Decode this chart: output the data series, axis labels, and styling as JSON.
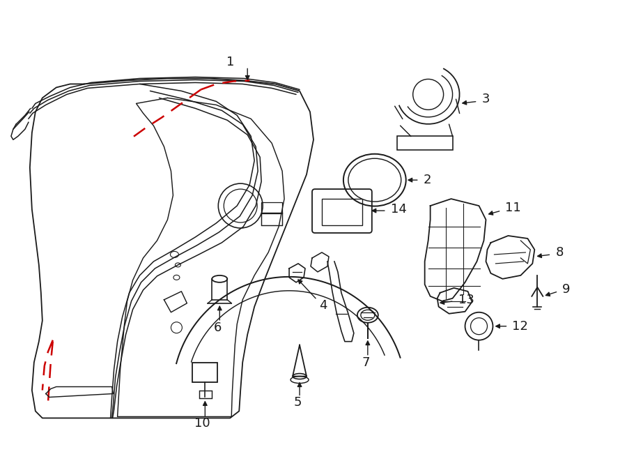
{
  "background_color": "#ffffff",
  "line_color": "#1a1a1a",
  "dashed_color": "#cc0000",
  "fig_width": 9.0,
  "fig_height": 6.61,
  "dpi": 100
}
